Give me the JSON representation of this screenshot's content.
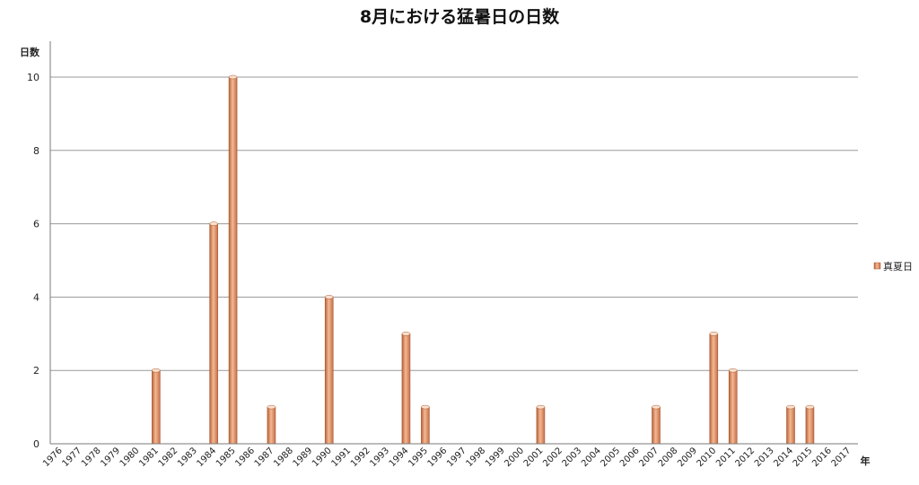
{
  "chart_data": {
    "type": "bar",
    "title": "8月における猛暑日の日数",
    "ylabel": "日数",
    "xlabel": "年",
    "ylim": [
      0,
      10
    ],
    "yticks": [
      0,
      2,
      4,
      6,
      8,
      10
    ],
    "grid": true,
    "legend_position": "right",
    "categories": [
      "1976",
      "1977",
      "1978",
      "1979",
      "1980",
      "1981",
      "1982",
      "1983",
      "1984",
      "1985",
      "1986",
      "1987",
      "1988",
      "1989",
      "1990",
      "1991",
      "1992",
      "1993",
      "1994",
      "1995",
      "1996",
      "1997",
      "1998",
      "1999",
      "2000",
      "2001",
      "2002",
      "2003",
      "2004",
      "2005",
      "2006",
      "2007",
      "2008",
      "2009",
      "2010",
      "2011",
      "2012",
      "2013",
      "2014",
      "2015",
      "2016",
      "2017"
    ],
    "series": [
      {
        "name": "真夏日",
        "color": "#e8956a",
        "values": [
          0,
          0,
          0,
          0,
          0,
          2,
          0,
          0,
          6,
          10,
          0,
          1,
          0,
          0,
          4,
          0,
          0,
          0,
          3,
          1,
          0,
          0,
          0,
          0,
          0,
          1,
          0,
          0,
          0,
          0,
          0,
          1,
          0,
          0,
          3,
          2,
          0,
          0,
          1,
          1,
          0,
          0
        ]
      }
    ]
  }
}
